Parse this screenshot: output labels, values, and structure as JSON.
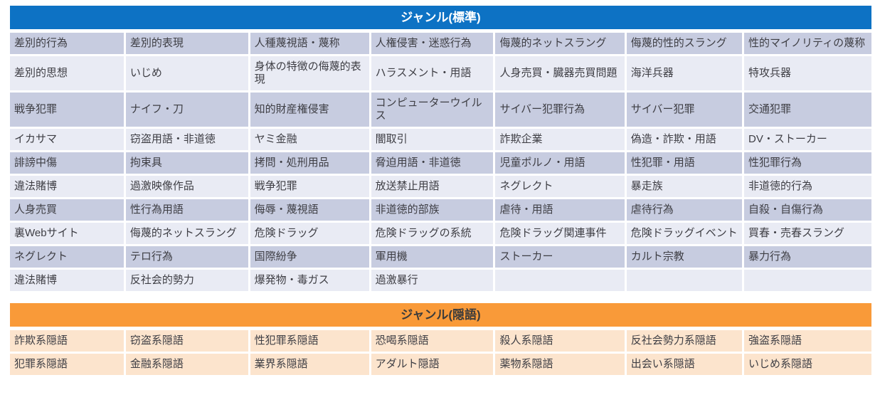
{
  "colors": {
    "standard_header_bg": "#0d72c4",
    "standard_header_text": "#ffffff",
    "standard_band_dark": "#c7cce0",
    "standard_band_light": "#e9ebf4",
    "slang_header_bg": "#f99a39",
    "slang_header_text": "#3b3b3b",
    "slang_band": "#fce4cd",
    "cell_text": "#3e3e44"
  },
  "standard_table": {
    "title": "ジャンル(標準)",
    "rows": [
      [
        "差別的行為",
        "差別的表現",
        "人種蔑視語・蔑称",
        "人権侵害・迷惑行為",
        "侮蔑的ネットスラング",
        "侮蔑的性的スラング",
        "性的マイノリティの蔑称"
      ],
      [
        "差別的思想",
        "いじめ",
        "身体の特徴の侮蔑的表現",
        "ハラスメント・用語",
        "人身売買・臓器売買問題",
        "海洋兵器",
        "特攻兵器"
      ],
      [
        "戦争犯罪",
        "ナイフ・刀",
        "知的財産権侵害",
        "コンピューターウイルス",
        "サイバー犯罪行為",
        "サイバー犯罪",
        "交通犯罪"
      ],
      [
        "イカサマ",
        "窃盗用語・非道徳",
        "ヤミ金融",
        "闇取引",
        "詐欺企業",
        "偽造・詐欺・用語",
        "DV・ストーカー"
      ],
      [
        "誹謗中傷",
        "拘束具",
        "拷問・処刑用品",
        "脅迫用語・非道徳",
        "児童ポルノ・用語",
        "性犯罪・用語",
        "性犯罪行為"
      ],
      [
        "違法賭博",
        "過激映像作品",
        "戦争犯罪",
        "放送禁止用語",
        "ネグレクト",
        "暴走族",
        "非道徳的行為"
      ],
      [
        "人身売買",
        "性行為用語",
        "侮辱・蔑視語",
        "非道徳的部族",
        "虐待・用語",
        "虐待行為",
        "自殺・自傷行為"
      ],
      [
        "裏Webサイト",
        "侮蔑的ネットスラング",
        "危険ドラッグ",
        "危険ドラッグの系統",
        "危険ドラッグ関連事件",
        "危険ドラッグイベント",
        "買春・売春スラング"
      ],
      [
        "ネグレクト",
        "テロ行為",
        "国際紛争",
        "軍用機",
        "ストーカー",
        "カルト宗教",
        "暴力行為"
      ],
      [
        "違法賭博",
        "反社会的勢力",
        "爆発物・毒ガス",
        "過激暴行",
        "",
        "",
        ""
      ]
    ]
  },
  "slang_table": {
    "title": "ジャンル(隠語)",
    "rows": [
      [
        "詐欺系隠語",
        "窃盗系隠語",
        "性犯罪系隠語",
        "恐喝系隠語",
        "殺人系隠語",
        "反社会勢力系隠語",
        "強盗系隠語"
      ],
      [
        "犯罪系隠語",
        "金融系隠語",
        "業界系隠語",
        "アダルト隠語",
        "薬物系隠語",
        "出会い系隠語",
        "いじめ系隠語"
      ]
    ]
  }
}
